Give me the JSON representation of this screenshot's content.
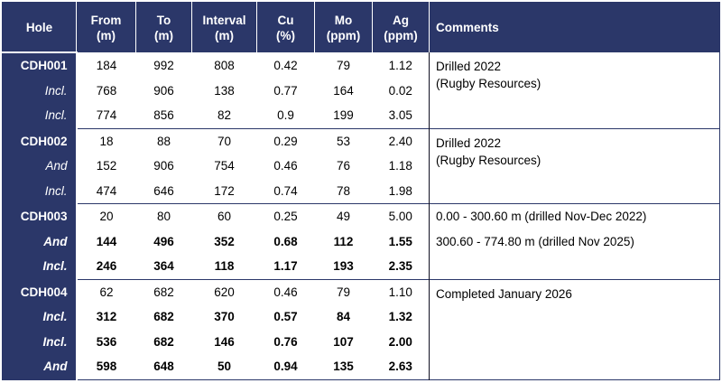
{
  "table": {
    "columns": [
      {
        "id": "hole",
        "label": "Hole",
        "sub": ""
      },
      {
        "id": "from",
        "label": "From",
        "sub": "(m)"
      },
      {
        "id": "to",
        "label": "To",
        "sub": "(m)"
      },
      {
        "id": "interval",
        "label": "Interval",
        "sub": "(m)"
      },
      {
        "id": "cu",
        "label": "Cu",
        "sub": "(%)"
      },
      {
        "id": "mo",
        "label": "Mo",
        "sub": "(ppm)"
      },
      {
        "id": "ag",
        "label": "Ag",
        "sub": "(ppm)"
      },
      {
        "id": "comments",
        "label": "Comments",
        "sub": ""
      }
    ],
    "sections": [
      {
        "hole": "CDH001",
        "comment_mode": "paragraph",
        "comment_lines": [
          "Drilled 2022",
          "(Rugby Resources)"
        ],
        "rows": [
          {
            "label": "CDH001",
            "label_style": "hole-name",
            "bold": false,
            "values": [
              "184",
              "992",
              "808",
              "0.42",
              "79",
              "1.12"
            ]
          },
          {
            "label": "Incl.",
            "label_style": "qualifier",
            "bold": false,
            "values": [
              "768",
              "906",
              "138",
              "0.77",
              "164",
              "0.02"
            ]
          },
          {
            "label": "Incl.",
            "label_style": "qualifier",
            "bold": false,
            "values": [
              "774",
              "856",
              "82",
              "0.9",
              "199",
              "3.05"
            ]
          }
        ]
      },
      {
        "hole": "CDH002",
        "comment_mode": "paragraph",
        "comment_lines": [
          "Drilled 2022",
          "(Rugby Resources)"
        ],
        "rows": [
          {
            "label": "CDH002",
            "label_style": "hole-name",
            "bold": false,
            "values": [
              "18",
              "88",
              "70",
              "0.29",
              "53",
              "2.40"
            ]
          },
          {
            "label": "And",
            "label_style": "qualifier",
            "bold": false,
            "values": [
              "152",
              "906",
              "754",
              "0.46",
              "76",
              "1.18"
            ]
          },
          {
            "label": "Incl.",
            "label_style": "qualifier",
            "bold": false,
            "values": [
              "474",
              "646",
              "172",
              "0.74",
              "78",
              "1.98"
            ]
          }
        ]
      },
      {
        "hole": "CDH003",
        "comment_mode": "rows",
        "comment_lines": [
          "0.00 - 300.60 m (drilled Nov-Dec 2022)",
          "300.60 - 774.80 m (drilled Nov 2025)"
        ],
        "rows": [
          {
            "label": "CDH003",
            "label_style": "hole-name",
            "bold": false,
            "values": [
              "20",
              "80",
              "60",
              "0.25",
              "49",
              "5.00"
            ]
          },
          {
            "label": "And",
            "label_style": "qualifier",
            "bold": true,
            "values": [
              "144",
              "496",
              "352",
              "0.68",
              "112",
              "1.55"
            ]
          },
          {
            "label": "Incl.",
            "label_style": "qualifier",
            "bold": true,
            "values": [
              "246",
              "364",
              "118",
              "1.17",
              "193",
              "2.35"
            ]
          }
        ]
      },
      {
        "hole": "CDH004",
        "comment_mode": "paragraph",
        "comment_lines": [
          "Completed January 2026"
        ],
        "rows": [
          {
            "label": "CDH004",
            "label_style": "hole-name",
            "bold": false,
            "values": [
              "62",
              "682",
              "620",
              "0.46",
              "79",
              "1.10"
            ]
          },
          {
            "label": "Incl.",
            "label_style": "qualifier",
            "bold": true,
            "values": [
              "312",
              "682",
              "370",
              "0.57",
              "84",
              "1.32"
            ]
          },
          {
            "label": "Incl.",
            "label_style": "qualifier",
            "bold": true,
            "values": [
              "536",
              "682",
              "146",
              "0.76",
              "107",
              "2.00"
            ]
          },
          {
            "label": "And",
            "label_style": "qualifier",
            "bold": true,
            "values": [
              "598",
              "648",
              "50",
              "0.94",
              "135",
              "2.63"
            ]
          }
        ]
      }
    ]
  },
  "colors": {
    "header_navy": "#2b3769",
    "body_text": "#000000",
    "header_text": "#ffffff"
  }
}
